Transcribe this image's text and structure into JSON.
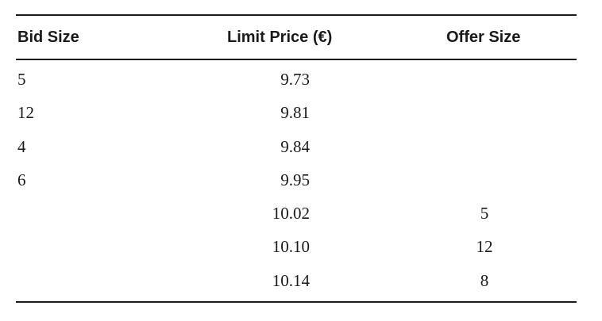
{
  "table": {
    "headers": {
      "bid_size": "Bid Size",
      "limit_price": "Limit Price (€)",
      "offer_size": "Offer Size"
    },
    "rows": [
      {
        "bid_size": "5",
        "limit_price": "9.73",
        "offer_size": ""
      },
      {
        "bid_size": "12",
        "limit_price": "9.81",
        "offer_size": ""
      },
      {
        "bid_size": "4",
        "limit_price": "9.84",
        "offer_size": ""
      },
      {
        "bid_size": "6",
        "limit_price": "9.95",
        "offer_size": ""
      },
      {
        "bid_size": "",
        "limit_price": "10.02",
        "offer_size": "5"
      },
      {
        "bid_size": "",
        "limit_price": "10.10",
        "offer_size": "12"
      },
      {
        "bid_size": "",
        "limit_price": "10.14",
        "offer_size": "8"
      }
    ]
  }
}
